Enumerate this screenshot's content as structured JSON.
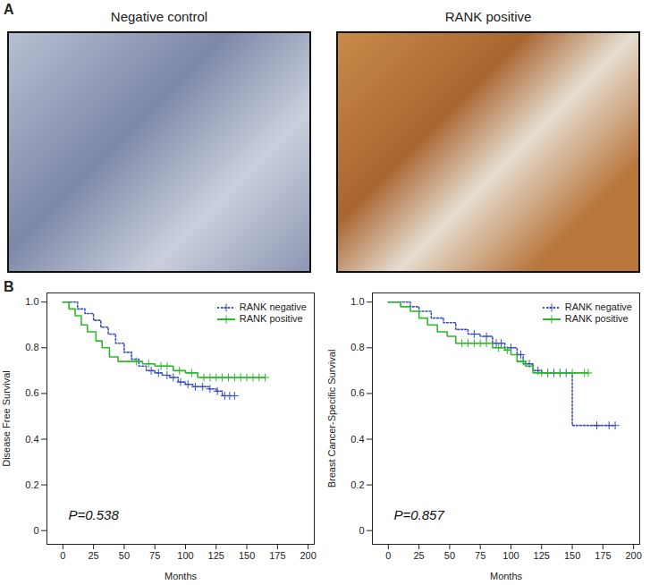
{
  "panel_a": {
    "label": "A",
    "images": [
      {
        "title": "Negative control"
      },
      {
        "title": "RANK positive"
      }
    ]
  },
  "panel_b_label": "B",
  "chart_data": [
    {
      "type": "line",
      "y_label": "Disease Free Survival",
      "x_label": "Months",
      "annotation": "P=0.538",
      "xlim": [
        -13,
        205
      ],
      "ylim": [
        -0.06,
        1.04
      ],
      "xticks": [
        0,
        25,
        50,
        75,
        100,
        125,
        150,
        175,
        200
      ],
      "yticks": [
        0,
        0.2,
        0.4,
        0.6,
        0.8,
        {
          "value": 1,
          "label": "1.0"
        }
      ],
      "legend": "top-right",
      "series": [
        {
          "name": "RANK negative",
          "color": "#3a4fc0",
          "line_style": "dotted",
          "marker": "plus",
          "x": [
            0,
            12,
            18,
            25,
            31,
            37,
            43,
            50,
            56,
            62,
            68,
            75,
            81,
            87,
            94,
            100,
            106,
            112,
            119,
            125,
            130,
            140
          ],
          "values": [
            1,
            0.97,
            0.95,
            0.92,
            0.89,
            0.86,
            0.82,
            0.78,
            0.75,
            0.72,
            0.7,
            0.69,
            0.68,
            0.67,
            0.65,
            0.64,
            0.63,
            0.63,
            0.62,
            0.61,
            0.59,
            0.59
          ],
          "censored_x": [
            72,
            78,
            85,
            90,
            96,
            102,
            108,
            114,
            120,
            126,
            132,
            136,
            140
          ],
          "censored_y": [
            0.7,
            0.69,
            0.68,
            0.67,
            0.65,
            0.64,
            0.63,
            0.63,
            0.62,
            0.61,
            0.59,
            0.59,
            0.59
          ]
        },
        {
          "name": "RANK positive",
          "color": "#2db82d",
          "line_style": "solid",
          "marker": "plus",
          "x": [
            0,
            5,
            10,
            15,
            20,
            27,
            32,
            38,
            45,
            65,
            75,
            90,
            100,
            110,
            165
          ],
          "values": [
            1,
            0.97,
            0.94,
            0.9,
            0.87,
            0.83,
            0.8,
            0.76,
            0.74,
            0.73,
            0.72,
            0.7,
            0.69,
            0.67,
            0.67
          ],
          "censored_x": [
            60,
            70,
            80,
            85,
            95,
            105,
            115,
            120,
            125,
            130,
            135,
            140,
            145,
            150,
            155,
            160,
            165
          ],
          "censored_y": [
            0.74,
            0.73,
            0.72,
            0.72,
            0.7,
            0.69,
            0.67,
            0.67,
            0.67,
            0.67,
            0.67,
            0.67,
            0.67,
            0.67,
            0.67,
            0.67,
            0.67
          ]
        }
      ]
    },
    {
      "type": "line",
      "y_label": "Breast Cancer-Specific Survival",
      "x_label": "Months",
      "annotation": "P=0.857",
      "xlim": [
        -13,
        205
      ],
      "ylim": [
        -0.06,
        1.04
      ],
      "xticks": [
        0,
        25,
        50,
        75,
        100,
        125,
        150,
        175,
        200
      ],
      "yticks": [
        0,
        0.2,
        0.4,
        0.6,
        0.8,
        {
          "value": 1,
          "label": "1.0"
        }
      ],
      "legend": "top-right",
      "series": [
        {
          "name": "RANK negative",
          "color": "#3a4fc0",
          "line_style": "dotted",
          "marker": "plus",
          "x": [
            0,
            18,
            25,
            35,
            45,
            55,
            65,
            75,
            85,
            95,
            105,
            110,
            118,
            125,
            150,
            185
          ],
          "values": [
            1,
            0.98,
            0.96,
            0.93,
            0.91,
            0.88,
            0.86,
            0.85,
            0.82,
            0.8,
            0.77,
            0.73,
            0.7,
            0.69,
            0.46,
            0.46
          ],
          "censored_x": [
            70,
            80,
            88,
            92,
            100,
            108,
            115,
            122,
            130,
            135,
            140,
            145,
            170,
            180,
            185
          ],
          "censored_y": [
            0.86,
            0.85,
            0.82,
            0.82,
            0.8,
            0.77,
            0.73,
            0.7,
            0.69,
            0.69,
            0.69,
            0.69,
            0.46,
            0.46,
            0.46
          ]
        },
        {
          "name": "RANK positive",
          "color": "#2db82d",
          "line_style": "solid",
          "marker": "plus",
          "x": [
            0,
            10,
            18,
            25,
            32,
            40,
            48,
            55,
            85,
            95,
            100,
            105,
            112,
            118,
            163
          ],
          "values": [
            1,
            0.98,
            0.96,
            0.93,
            0.9,
            0.87,
            0.85,
            0.82,
            0.8,
            0.79,
            0.77,
            0.74,
            0.72,
            0.69,
            0.69
          ],
          "censored_x": [
            60,
            65,
            70,
            75,
            80,
            90,
            97,
            110,
            125,
            130,
            140,
            150,
            160,
            163
          ],
          "censored_y": [
            0.82,
            0.82,
            0.82,
            0.82,
            0.82,
            0.8,
            0.79,
            0.74,
            0.69,
            0.69,
            0.69,
            0.69,
            0.69,
            0.69
          ]
        }
      ]
    }
  ]
}
